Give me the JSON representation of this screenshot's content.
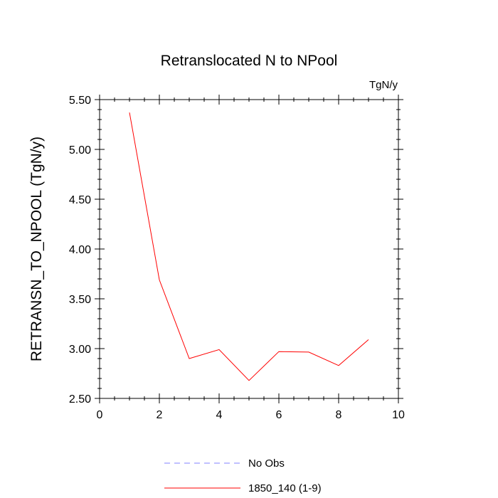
{
  "chart_data": {
    "type": "line",
    "title": "Retranslocated N to NPool",
    "units_label": "TgN/y",
    "xlabel": "",
    "ylabel": "RETRANSN_TO_NPOOL  (TgN/y)",
    "xlim": [
      0,
      10
    ],
    "ylim": [
      2.5,
      5.5
    ],
    "x_ticks": [
      0,
      2,
      4,
      6,
      8,
      10
    ],
    "x_tick_labels": [
      "0",
      "2",
      "4",
      "6",
      "8",
      "10"
    ],
    "y_ticks": [
      2.5,
      3.0,
      3.5,
      4.0,
      4.5,
      5.0,
      5.5
    ],
    "y_tick_labels": [
      "2.50",
      "3.00",
      "3.50",
      "4.00",
      "4.50",
      "5.00",
      "5.50"
    ],
    "grid": false,
    "series": [
      {
        "name": "1850_140 (1-9)",
        "color": "#ff0000",
        "style": "solid",
        "x": [
          1,
          2,
          3,
          4,
          5,
          6,
          7,
          8,
          9
        ],
        "values": [
          5.37,
          3.69,
          2.9,
          2.99,
          2.68,
          2.97,
          2.965,
          2.83,
          3.09
        ]
      }
    ],
    "legend": [
      {
        "label": "No Obs",
        "color": "#8080ff",
        "style": "dashed"
      },
      {
        "label": "1850_140 (1-9)",
        "color": "#ff0000",
        "style": "solid"
      }
    ],
    "legend_position": "bottom-center"
  }
}
